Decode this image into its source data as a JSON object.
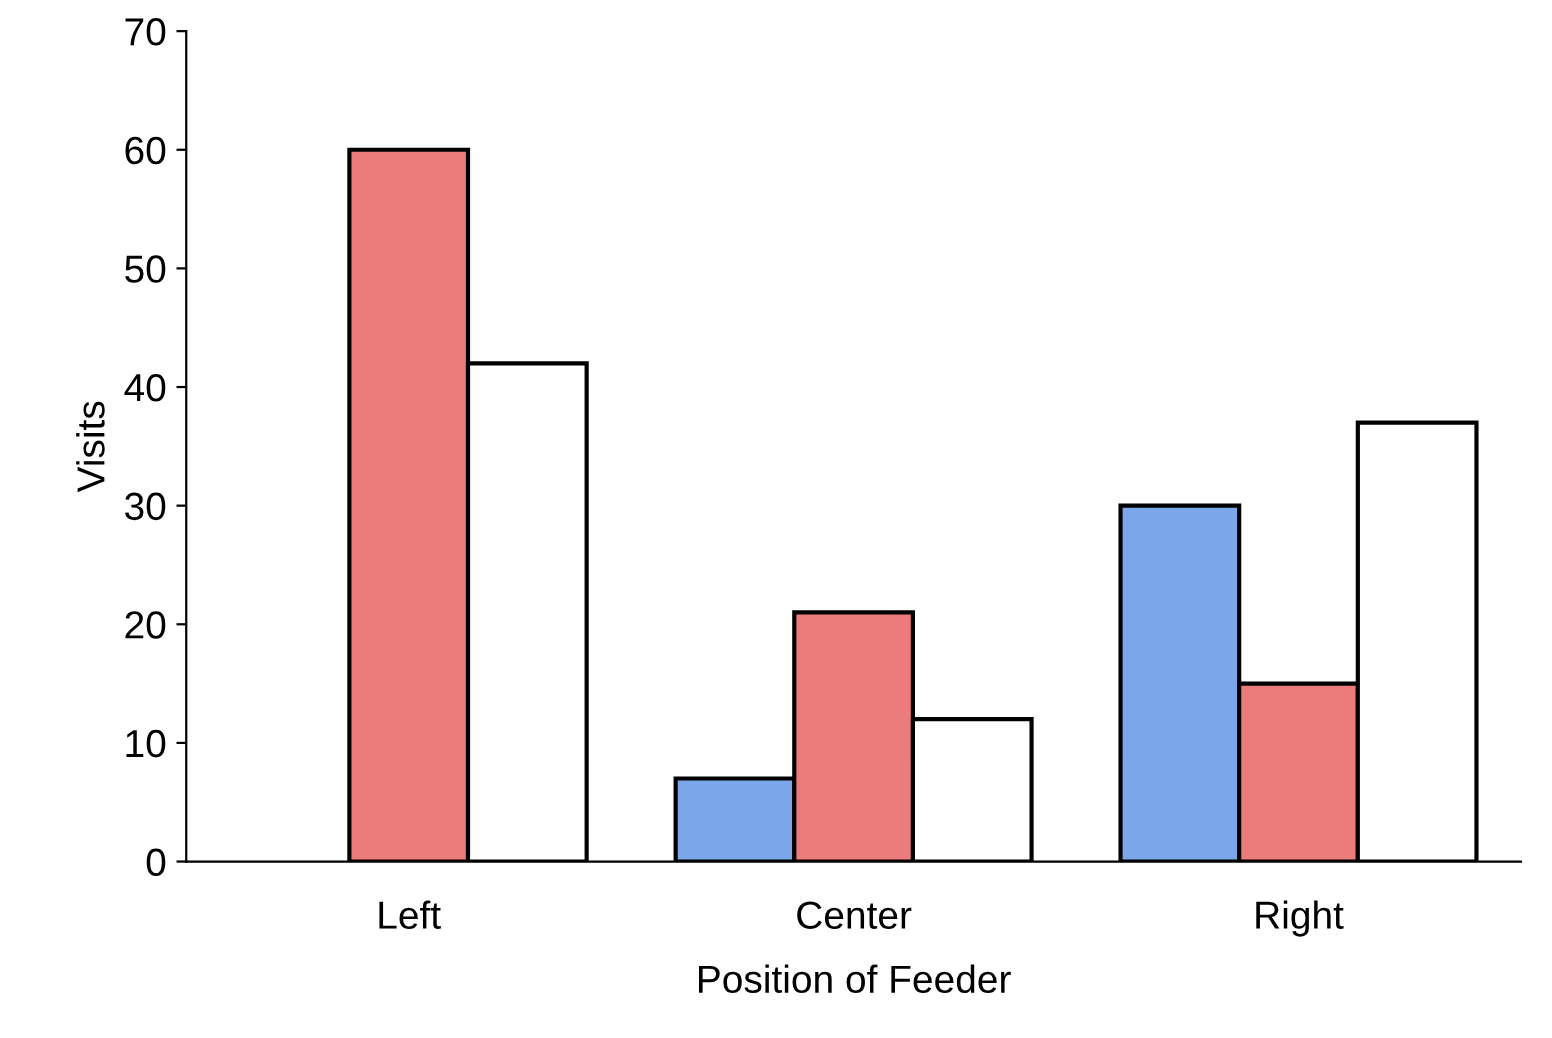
{
  "chart_data": {
    "type": "bar",
    "xlabel": "Position of Feeder",
    "ylabel": "Visits",
    "categories": [
      "Left",
      "Center",
      "Right"
    ],
    "series": [
      {
        "color": "#7ba7ea",
        "values": [
          null,
          7,
          30
        ]
      },
      {
        "color": "#ec7b7b",
        "values": [
          60,
          21,
          15
        ]
      },
      {
        "color": "#ffffff",
        "values": [
          42,
          12,
          37
        ]
      }
    ],
    "ylim": [
      0,
      70
    ],
    "yticks": [
      0,
      10,
      20,
      30,
      40,
      50,
      60,
      70
    ],
    "grid": false,
    "legend": false
  }
}
